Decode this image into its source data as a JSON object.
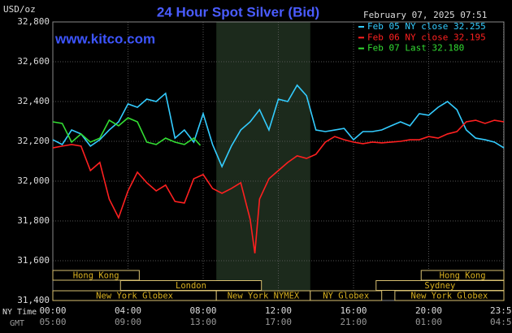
{
  "chart_data": {
    "type": "line",
    "title": "24 Hour Spot Silver (Bid)",
    "subtitle": "February 07, 2025 07:51",
    "annotation": "www.kitco.com",
    "y_label": "USD/oz",
    "x_label": "NY Time",
    "x2_label": "GMT",
    "ylim": [
      31400,
      32800
    ],
    "yticks": [
      {
        "value": 31400,
        "label": "31,400"
      },
      {
        "value": 31600,
        "label": "31,600"
      },
      {
        "value": 31800,
        "label": "31,800"
      },
      {
        "value": 32000,
        "label": "32,000"
      },
      {
        "value": 32200,
        "label": "32,200"
      },
      {
        "value": 32400,
        "label": "32,400"
      },
      {
        "value": 32600,
        "label": "32,600"
      },
      {
        "value": 32800,
        "label": "32,800"
      }
    ],
    "xlim": [
      0,
      24
    ],
    "xticks": [
      {
        "value": 0,
        "label": "00:00"
      },
      {
        "value": 4,
        "label": "04:00"
      },
      {
        "value": 8,
        "label": "08:00"
      },
      {
        "value": 12,
        "label": "12:00"
      },
      {
        "value": 16,
        "label": "16:00"
      },
      {
        "value": 20,
        "label": "20:00"
      },
      {
        "value": 23.983,
        "label": "23:59"
      }
    ],
    "x2ticks": [
      "05:00",
      "09:00",
      "13:00",
      "17:00",
      "21:00",
      "01:00",
      "04:59"
    ],
    "grid": true,
    "sessions": [
      [
        {
          "label": "Hong Kong",
          "start": 0,
          "end": 4.6
        },
        {
          "label": "Hong Kong",
          "start": 19.6,
          "end": 24
        }
      ],
      [
        {
          "label": "London",
          "start": 3.6,
          "end": 11.1
        },
        {
          "label": "Sydney",
          "start": 17.2,
          "end": 24
        }
      ],
      [
        {
          "label": "New York Globex",
          "start": 0,
          "end": 8.7
        },
        {
          "label": "New York NYMEX",
          "start": 8.7,
          "end": 13.7
        },
        {
          "label": "NY Globex",
          "start": 13.7,
          "end": 17.5
        },
        {
          "label": "New York Globex",
          "start": 18.2,
          "end": 24
        }
      ]
    ],
    "series": [
      {
        "name": "Feb 05 NY close 32.255",
        "color": "#33ccff",
        "x": [
          0,
          0.5,
          1,
          1.5,
          2,
          2.5,
          3,
          3.5,
          4,
          4.5,
          5,
          5.5,
          6,
          6.5,
          7,
          7.5,
          8,
          8.5,
          9,
          9.5,
          10,
          10.5,
          11,
          11.5,
          12,
          12.5,
          13,
          13.5,
          14,
          14.5,
          15,
          15.5,
          16,
          16.5,
          17,
          17.5,
          18,
          18.5,
          19,
          19.5,
          20,
          20.5,
          21,
          21.5,
          22,
          22.5,
          23,
          23.5,
          24
        ],
        "values": [
          32208,
          32184,
          32257,
          32237,
          32176,
          32208,
          32257,
          32298,
          32388,
          32371,
          32412,
          32400,
          32441,
          32216,
          32257,
          32196,
          32339,
          32184,
          32073,
          32176,
          32257,
          32298,
          32359,
          32257,
          32412,
          32400,
          32482,
          32429,
          32257,
          32249,
          32257,
          32265,
          32208,
          32249,
          32249,
          32257,
          32278,
          32298,
          32278,
          32339,
          32331,
          32371,
          32400,
          32359,
          32257,
          32216,
          32208,
          32196,
          32167
        ]
      },
      {
        "name": "Feb 06 NY close 32.195",
        "color": "#ff2020",
        "x": [
          0,
          0.5,
          1,
          1.5,
          2,
          2.5,
          3,
          3.5,
          4,
          4.5,
          5,
          5.5,
          6,
          6.5,
          7,
          7.5,
          8,
          8.5,
          9,
          9.5,
          10,
          10.5,
          10.75,
          11,
          11.5,
          12,
          12.5,
          13,
          13.5,
          14,
          14.5,
          15,
          15.5,
          16,
          16.5,
          17,
          17.5,
          18,
          18.5,
          19,
          19.5,
          20,
          20.5,
          21,
          21.5,
          22,
          22.5,
          23,
          23.5,
          24
        ],
        "values": [
          32167,
          32176,
          32184,
          32176,
          32053,
          32094,
          31910,
          31816,
          31951,
          32045,
          31992,
          31951,
          31980,
          31898,
          31890,
          32012,
          32033,
          31963,
          31939,
          31963,
          31992,
          31808,
          31637,
          31910,
          32012,
          32053,
          32094,
          32127,
          32114,
          32135,
          32196,
          32224,
          32208,
          32196,
          32188,
          32196,
          32192,
          32196,
          32200,
          32208,
          32208,
          32224,
          32216,
          32237,
          32249,
          32298,
          32306,
          32290,
          32306,
          32298
        ]
      },
      {
        "name": "Feb 07 Last 32.180",
        "color": "#33dd33",
        "x": [
          0,
          0.5,
          1,
          1.5,
          2,
          2.5,
          3,
          3.5,
          4,
          4.5,
          5,
          5.5,
          6,
          6.5,
          7,
          7.5,
          7.85
        ],
        "values": [
          32298,
          32290,
          32196,
          32237,
          32196,
          32216,
          32306,
          32278,
          32318,
          32298,
          32196,
          32184,
          32216,
          32196,
          32184,
          32216,
          32180
        ]
      }
    ]
  }
}
